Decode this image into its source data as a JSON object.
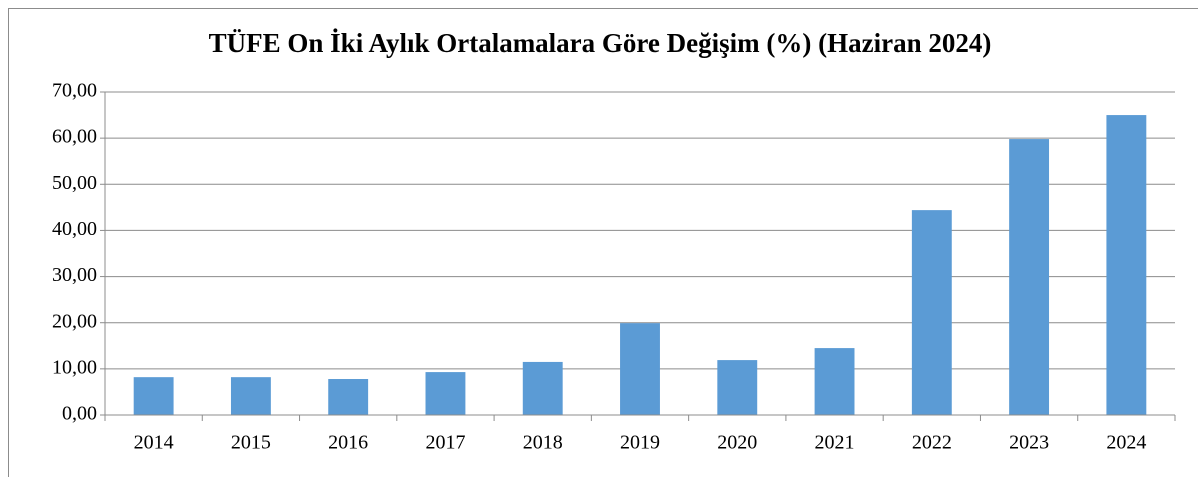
{
  "chart_data": {
    "type": "bar",
    "title": "TÜFE On İki Aylık Ortalamalara Göre Değişim (%) (Haziran 2024)",
    "categories": [
      "2014",
      "2015",
      "2016",
      "2017",
      "2018",
      "2019",
      "2020",
      "2021",
      "2022",
      "2023",
      "2024"
    ],
    "values": [
      8.2,
      8.2,
      7.8,
      9.3,
      11.5,
      19.9,
      11.9,
      14.5,
      44.4,
      59.8,
      65.0
    ],
    "color": "#5b9bd5",
    "ylim": [
      0,
      70
    ],
    "yticks": [
      {
        "value": 0,
        "label": "0,00"
      },
      {
        "value": 10,
        "label": "10,00"
      },
      {
        "value": 20,
        "label": "20,00"
      },
      {
        "value": 30,
        "label": "30,00"
      },
      {
        "value": 40,
        "label": "40,00"
      },
      {
        "value": 50,
        "label": "50,00"
      },
      {
        "value": 60,
        "label": "60,00"
      },
      {
        "value": 70,
        "label": "70,00"
      }
    ],
    "grid": true
  }
}
